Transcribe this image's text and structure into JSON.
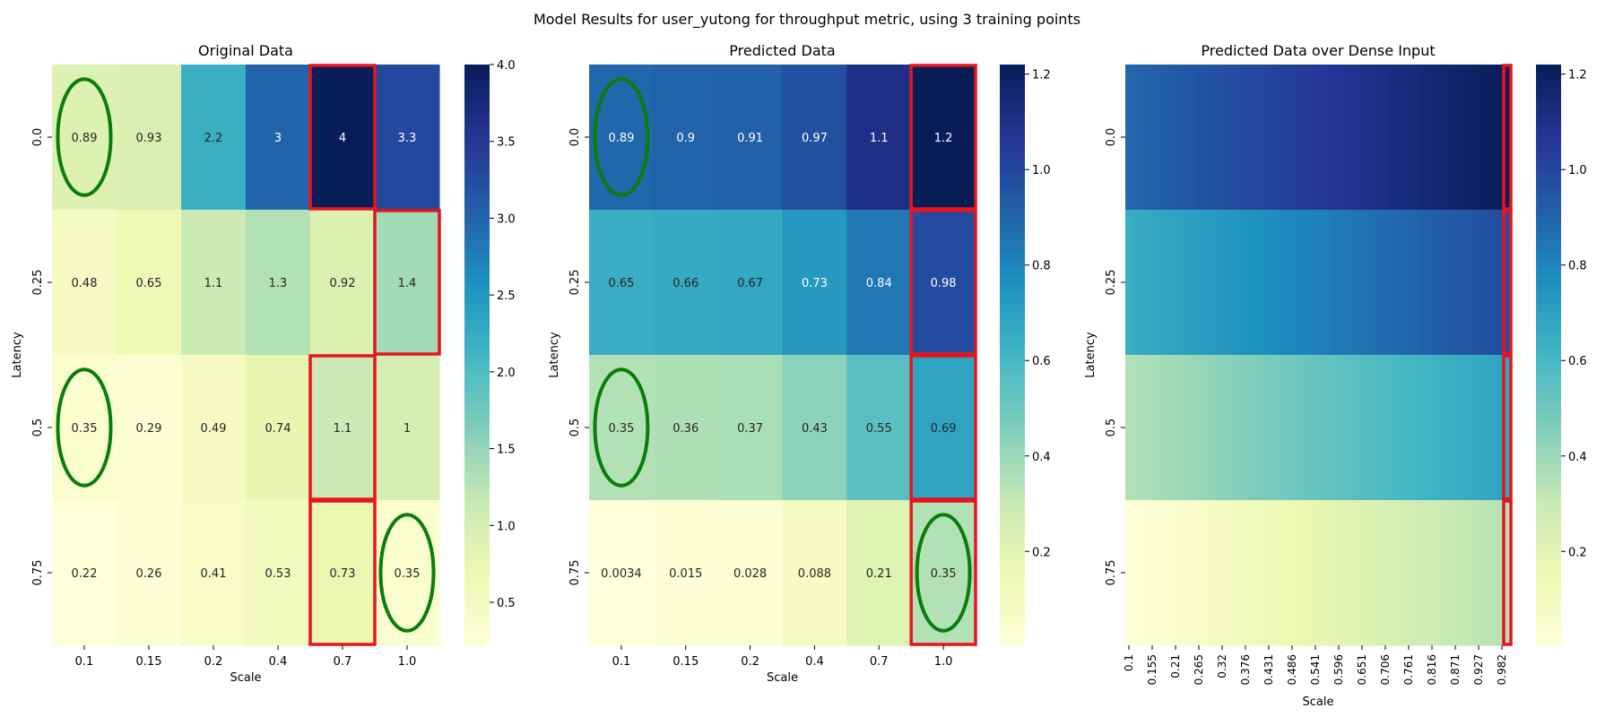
{
  "figure": {
    "title": "Model Results for user_yutong for throughput metric, using 3 training points"
  },
  "chart_data": [
    {
      "type": "heatmap",
      "title": "Original Data",
      "xlabel": "Scale",
      "ylabel": "Latency",
      "x": [
        "0.1",
        "0.15",
        "0.2",
        "0.4",
        "0.7",
        "1.0"
      ],
      "y": [
        "0.0",
        "0.25",
        "0.5",
        "0.75"
      ],
      "labels": [
        [
          "0.89",
          "0.93",
          "2.2",
          "3",
          "4",
          "3.3"
        ],
        [
          "0.48",
          "0.65",
          "1.1",
          "1.3",
          "0.92",
          "1.4"
        ],
        [
          "0.35",
          "0.29",
          "0.49",
          "0.74",
          "1.1",
          "1"
        ],
        [
          "0.22",
          "0.26",
          "0.41",
          "0.53",
          "0.73",
          "0.35"
        ]
      ],
      "values": [
        [
          0.89,
          0.93,
          2.2,
          3.0,
          4.0,
          3.3
        ],
        [
          0.48,
          0.65,
          1.1,
          1.3,
          0.92,
          1.4
        ],
        [
          0.35,
          0.29,
          0.49,
          0.74,
          1.1,
          1.0
        ],
        [
          0.22,
          0.26,
          0.41,
          0.53,
          0.73,
          0.35
        ]
      ],
      "colorbar": {
        "range": [
          0.22,
          4.0
        ],
        "ticks": [
          "0.5",
          "1.0",
          "1.5",
          "2.0",
          "2.5",
          "3.0",
          "3.5",
          "4.0"
        ]
      },
      "colormap": "YlGnBu",
      "training_points": [
        [
          0,
          0
        ],
        [
          2,
          0
        ],
        [
          3,
          5
        ]
      ],
      "highlights": [
        {
          "rows": [
            0,
            0
          ],
          "col": 4
        },
        {
          "rows": [
            1,
            1
          ],
          "col": 5
        },
        {
          "rows": [
            2,
            2
          ],
          "col": 4
        },
        {
          "rows": [
            3,
            3
          ],
          "col": 4
        }
      ]
    },
    {
      "type": "heatmap",
      "title": "Predicted Data",
      "xlabel": "Scale",
      "ylabel": "Latency",
      "x": [
        "0.1",
        "0.15",
        "0.2",
        "0.4",
        "0.7",
        "1.0"
      ],
      "y": [
        "0.0",
        "0.25",
        "0.5",
        "0.75"
      ],
      "labels": [
        [
          "0.89",
          "0.9",
          "0.91",
          "0.97",
          "1.1",
          "1.2"
        ],
        [
          "0.65",
          "0.66",
          "0.67",
          "0.73",
          "0.84",
          "0.98"
        ],
        [
          "0.35",
          "0.36",
          "0.37",
          "0.43",
          "0.55",
          "0.69"
        ],
        [
          "0.0034",
          "0.015",
          "0.028",
          "0.088",
          "0.21",
          "0.35"
        ]
      ],
      "values": [
        [
          0.89,
          0.9,
          0.91,
          0.97,
          1.1,
          1.22
        ],
        [
          0.65,
          0.66,
          0.67,
          0.73,
          0.84,
          0.98
        ],
        [
          0.35,
          0.36,
          0.37,
          0.43,
          0.55,
          0.69
        ],
        [
          0.0034,
          0.015,
          0.028,
          0.088,
          0.21,
          0.35
        ]
      ],
      "colorbar": {
        "range": [
          0.0034,
          1.22
        ],
        "ticks": [
          "0.2",
          "0.4",
          "0.6",
          "0.8",
          "1.0",
          "1.2"
        ]
      },
      "colormap": "YlGnBu",
      "training_points": [
        [
          0,
          0
        ],
        [
          2,
          0
        ],
        [
          3,
          5
        ]
      ],
      "highlights": [
        {
          "rows": [
            0,
            0
          ],
          "col": 5
        },
        {
          "rows": [
            1,
            1
          ],
          "col": 5
        },
        {
          "rows": [
            2,
            2
          ],
          "col": 5
        },
        {
          "rows": [
            3,
            3
          ],
          "col": 5
        }
      ]
    },
    {
      "type": "heatmap",
      "title": "Predicted Data over Dense Input",
      "xlabel": "Scale",
      "ylabel": "Latency",
      "x_ticks": [
        "0.1",
        "0.155",
        "0.21",
        "0.265",
        "0.32",
        "0.376",
        "0.431",
        "0.486",
        "0.541",
        "0.596",
        "0.651",
        "0.706",
        "0.761",
        "0.816",
        "0.871",
        "0.927",
        "0.982"
      ],
      "x_range": [
        0.1,
        1.0
      ],
      "y": [
        "0.0",
        "0.25",
        "0.5",
        "0.75"
      ],
      "row_ranges": [
        [
          0.89,
          1.22
        ],
        [
          0.65,
          0.98
        ],
        [
          0.35,
          0.69
        ],
        [
          0.0034,
          0.35
        ]
      ],
      "colorbar": {
        "range": [
          0.0034,
          1.22
        ],
        "ticks": [
          "0.2",
          "0.4",
          "0.6",
          "0.8",
          "1.0",
          "1.2"
        ]
      },
      "colormap": "YlGnBu",
      "highlights": [
        {
          "rows": [
            0,
            0
          ],
          "col": "last"
        },
        {
          "rows": [
            1,
            1
          ],
          "col": "last"
        },
        {
          "rows": [
            2,
            2
          ],
          "col": "last"
        },
        {
          "rows": [
            3,
            3
          ],
          "col": "last"
        }
      ]
    }
  ]
}
